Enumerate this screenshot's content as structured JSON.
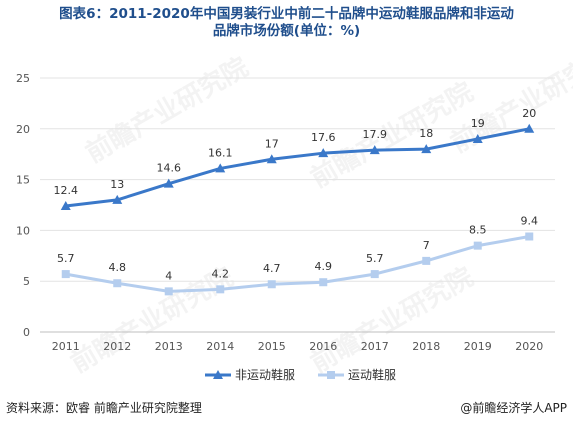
{
  "title_line1": "图表6：2011-2020年中国男装行业中前二十品牌中运动鞋服品牌和非运动",
  "title_line2": "品牌市场份额(单位：%)",
  "source": "资料来源：欧睿 前瞻产业研究院整理",
  "brand": "@前瞻经济学人APP",
  "watermark": "前瞻产业研究院",
  "chart_data": {
    "type": "line",
    "title": "图表6：2011-2020年中国男装行业中前二十品牌中运动鞋服品牌和非运动品牌市场份额(单位：%)",
    "xlabel": "",
    "ylabel": "",
    "x": [
      "2011",
      "2012",
      "2013",
      "2014",
      "2015",
      "2016",
      "2017",
      "2018",
      "2019",
      "2020"
    ],
    "yticks": [
      "0",
      "5",
      "10",
      "15",
      "20",
      "25"
    ],
    "ylim": [
      0,
      25
    ],
    "grid": true,
    "legend_position": "bottom",
    "series": [
      {
        "name": "非运动鞋服",
        "color": "#3a78c9",
        "marker": "triangle",
        "values": [
          12.4,
          13,
          14.6,
          16.1,
          17,
          17.6,
          17.9,
          18,
          19,
          20
        ],
        "labels": [
          "12.4",
          "13",
          "14.6",
          "16.1",
          "17",
          "17.6",
          "17.9",
          "18",
          "19",
          "20"
        ]
      },
      {
        "name": "运动鞋服",
        "color": "#b4cdee",
        "marker": "square",
        "values": [
          5.7,
          4.8,
          4,
          4.2,
          4.7,
          4.9,
          5.7,
          7,
          8.5,
          9.4
        ],
        "labels": [
          "5.7",
          "4.8",
          "4",
          "4.2",
          "4.7",
          "4.9",
          "5.7",
          "7",
          "8.5",
          "9.4"
        ]
      }
    ]
  }
}
